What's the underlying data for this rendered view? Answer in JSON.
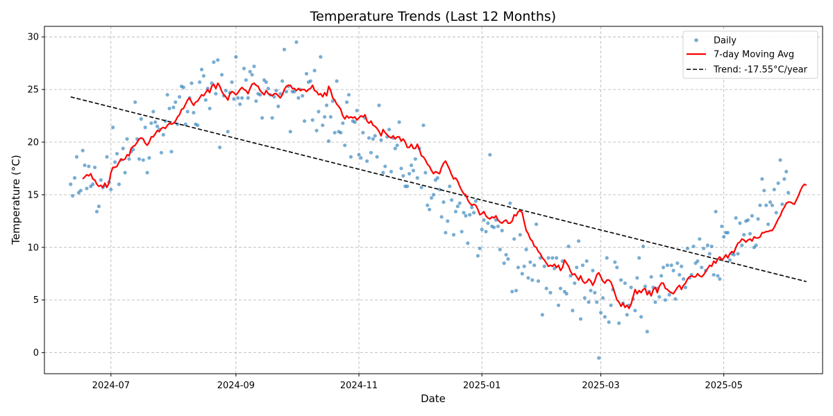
{
  "chart_data": {
    "type": "scatter",
    "title": "Temperature Trends (Last 12 Months)",
    "xlabel": "Date",
    "ylabel": "Temperature (°C)",
    "xlim": [
      "2024-05-29",
      "2025-06-19"
    ],
    "ylim": [
      -2,
      31
    ],
    "yticks": [
      0,
      5,
      10,
      15,
      20,
      25,
      30
    ],
    "xticks": [
      "2024-07-01",
      "2024-09-01",
      "2024-11-01",
      "2025-01-01",
      "2025-03-01",
      "2025-05-01"
    ],
    "xtick_labels": [
      "2024-07",
      "2024-09",
      "2024-11",
      "2025-01",
      "2025-03",
      "2025-05"
    ],
    "grid": true,
    "legend_position": "top-right",
    "colors": {
      "daily": "#1f77b4",
      "moving_avg": "#ff0000",
      "trend": "#000000"
    },
    "series": [
      {
        "name": "Daily",
        "style": "points",
        "x_start": "2024-06-11",
        "x_step_days": 1,
        "values": [
          16.0,
          14.9,
          16.6,
          18.6,
          15.2,
          15.4,
          19.2,
          17.8,
          15.6,
          17.7,
          15.8,
          16.0,
          17.6,
          13.4,
          13.9,
          16.4,
          15.7,
          15.9,
          18.6,
          16.2,
          15.5,
          21.4,
          18.1,
          18.9,
          16.0,
          18.3,
          19.4,
          17.1,
          20.3,
          18.4,
          19.1,
          19.3,
          23.8,
          20.3,
          18.4,
          22.2,
          18.3,
          21.4,
          17.1,
          18.5,
          21.8,
          22.9,
          21.9,
          21.5,
          21.2,
          19.0,
          20.7,
          22.0,
          24.5,
          23.2,
          19.1,
          23.3,
          23.8,
          21.7,
          24.3,
          25.3,
          25.2,
          21.7,
          22.9,
          24.2,
          25.6,
          22.8,
          21.7,
          21.6,
          25.7,
          26.9,
          26.3,
          24.0,
          25.1,
          23.2,
          25.6,
          27.6,
          24.6,
          27.8,
          19.5,
          26.4,
          24.4,
          24.9,
          21.0,
          24.7,
          25.7,
          24.1,
          28.1,
          24.2,
          23.6,
          24.2,
          27.0,
          25.9,
          24.2,
          26.7,
          26.4,
          27.2,
          23.9,
          24.6,
          24.5,
          22.3,
          25.9,
          25.7,
          25.1,
          24.5,
          22.3,
          24.3,
          24.9,
          23.4,
          24.6,
          25.8,
          28.8,
          24.8,
          25.3,
          21.0,
          24.8,
          24.8,
          29.5,
          24.2,
          25.0,
          24.4,
          22.0,
          26.5,
          25.7,
          25.8,
          22.1,
          26.8,
          21.1,
          22.9,
          28.1,
          21.6,
          22.4,
          23.5,
          20.1,
          22.4,
          23.9,
          20.9,
          25.8,
          21.0,
          20.9,
          21.8,
          19.7,
          23.8,
          24.5,
          18.6,
          22.0,
          21.9,
          23.0,
          18.8,
          18.5,
          20.9,
          22.3,
          18.2,
          20.4,
          19.0,
          20.3,
          20.6,
          18.6,
          23.5,
          20.2,
          17.1,
          17.7,
          20.5,
          21.2,
          17.2,
          20.4,
          19.4,
          19.7,
          21.9,
          17.5,
          16.8,
          15.8,
          15.8,
          17.0,
          17.8,
          17.3,
          18.4,
          16.6,
          19.4,
          15.7,
          21.6,
          17.1,
          14.0,
          13.6,
          14.7,
          15.0,
          16.4,
          16.6,
          15.5,
          12.9,
          14.3,
          11.4,
          12.5,
          15.8,
          14.5,
          11.2,
          13.4,
          13.9,
          14.2,
          11.5,
          13.3,
          13.0,
          10.4,
          13.1,
          13.8,
          13.3,
          14.4,
          9.2,
          9.9,
          11.7,
          12.6,
          11.5,
          12.3,
          18.8,
          12.0,
          11.9,
          12.6,
          12.0,
          9.8,
          11.6,
          8.5,
          9.3,
          8.9,
          14.2,
          5.8,
          10.8,
          5.9,
          8.1,
          11.2,
          7.5,
          8.2,
          9.8,
          7.1,
          8.6,
          6.9,
          8.3,
          12.2,
          6.8,
          9.0,
          3.6,
          8.2,
          6.1,
          9.0,
          5.7,
          9.0,
          8.0,
          9.0,
          4.5,
          6.1,
          8.7,
          5.8,
          5.6,
          10.1,
          7.3,
          4.0,
          6.6,
          8.1,
          10.6,
          3.2,
          8.3,
          5.2,
          8.7,
          4.8,
          5.9,
          7.8,
          5.7,
          4.8,
          -0.5,
          3.8,
          5.2,
          3.4,
          9.0,
          2.9,
          4.5,
          6.0,
          8.6,
          8.1,
          2.8,
          6.9,
          4.7,
          6.6,
          3.6,
          4.5,
          6.2,
          5.1,
          4.0,
          7.1,
          9.0,
          3.4,
          10.1,
          6.3,
          2.0,
          5.8,
          7.2,
          6.2,
          4.8,
          6.1,
          5.3,
          7.3,
          8.1,
          5.0,
          8.3,
          5.5,
          8.3,
          7.8,
          5.1,
          8.5,
          7.4,
          8.2,
          7.0,
          6.2,
          9.9,
          7.1,
          7.4,
          10.1,
          8.5,
          8.7,
          10.8,
          8.1,
          9.9,
          7.8,
          10.2,
          9.4,
          10.1,
          7.4,
          13.4,
          7.3,
          7.0,
          12.0,
          11.0,
          11.4,
          11.4,
          8.8,
          9.4,
          9.3,
          12.8,
          9.4,
          12.3,
          10.2,
          11.2,
          12.5,
          12.6,
          11.3,
          13.0,
          10.0,
          10.2,
          12.7,
          14.0,
          16.5,
          15.4,
          14.0,
          12.2,
          14.3,
          14.0,
          15.5,
          13.3,
          16.1,
          18.3,
          14.1,
          16.5,
          17.2,
          15.2
        ]
      },
      {
        "name": "7-day Moving Avg",
        "style": "line",
        "x_start": "2024-06-17",
        "x_step_days": 1,
        "values": [
          16.5,
          16.7,
          16.9,
          16.8,
          17.0,
          16.5,
          16.4,
          16.0,
          15.8,
          15.9,
          15.7,
          16.1,
          15.7,
          16.1,
          17.1,
          17.6,
          17.6,
          17.7,
          18.1,
          18.4,
          18.3,
          18.4,
          18.8,
          18.7,
          19.4,
          19.6,
          19.7,
          20.0,
          20.3,
          20.4,
          20.3,
          19.9,
          19.7,
          20.0,
          20.5,
          20.5,
          20.8,
          21.1,
          21.0,
          21.3,
          21.4,
          21.3,
          21.6,
          21.8,
          21.7,
          21.8,
          22.0,
          22.4,
          22.6,
          23.1,
          23.2,
          23.6,
          24.0,
          24.2,
          23.8,
          23.5,
          23.8,
          23.9,
          24.2,
          24.5,
          24.4,
          24.7,
          25.0,
          24.7,
          25.3,
          25.5,
          25.1,
          25.6,
          25.3,
          24.8,
          24.5,
          24.3,
          24.0,
          24.6,
          24.8,
          24.7,
          24.5,
          24.7,
          25.0,
          25.2,
          25.0,
          24.9,
          24.6,
          25.1,
          25.5,
          25.6,
          25.4,
          25.3,
          24.9,
          24.7,
          24.5,
          24.9,
          24.6,
          24.5,
          24.4,
          24.6,
          24.6,
          24.4,
          24.2,
          24.5,
          25.0,
          25.3,
          25.4,
          25.4,
          25.1,
          25.1,
          24.9,
          25.1,
          24.9,
          25.0,
          25.0,
          24.8,
          25.0,
          25.1,
          25.4,
          24.9,
          24.8,
          24.5,
          24.6,
          24.3,
          24.7,
          24.4,
          25.3,
          24.9,
          24.2,
          24.0,
          23.6,
          23.4,
          23.1,
          22.5,
          22.2,
          22.5,
          22.3,
          22.4,
          22.3,
          22.4,
          22.1,
          22.3,
          22.5,
          22.4,
          22.6,
          22.0,
          21.8,
          22.0,
          21.6,
          21.5,
          21.3,
          21.0,
          20.6,
          21.2,
          20.9,
          20.7,
          20.5,
          20.4,
          20.6,
          20.3,
          20.5,
          20.5,
          20.1,
          20.3,
          20.0,
          19.5,
          19.5,
          19.8,
          19.4,
          19.4,
          19.8,
          19.3,
          18.7,
          18.6,
          18.3,
          17.9,
          17.7,
          17.3,
          17.0,
          17.2,
          17.1,
          17.0,
          17.6,
          18.0,
          18.2,
          17.8,
          17.4,
          16.9,
          16.5,
          16.6,
          16.3,
          15.8,
          15.4,
          15.1,
          15.0,
          14.5,
          14.2,
          14.0,
          14.1,
          14.0,
          13.6,
          13.1,
          13.2,
          13.4,
          13.0,
          12.8,
          12.7,
          12.9,
          12.8,
          13.0,
          12.6,
          12.4,
          12.3,
          12.5,
          12.6,
          12.3,
          12.3,
          12.5,
          13.1,
          13.0,
          13.4,
          13.5,
          13.3,
          12.4,
          11.6,
          11.3,
          10.8,
          10.6,
          10.1,
          10.0,
          9.6,
          9.4,
          9.0,
          8.8,
          8.5,
          8.2,
          8.3,
          8.2,
          8.4,
          8.1,
          8.3,
          7.8,
          8.1,
          8.8,
          8.5,
          8.2,
          7.7,
          7.4,
          7.5,
          7.2,
          6.9,
          7.3,
          6.8,
          6.6,
          6.7,
          7.0,
          6.8,
          6.4,
          6.8,
          7.4,
          7.6,
          7.2,
          6.8,
          6.6,
          6.9,
          6.9,
          6.7,
          6.2,
          5.6,
          5.0,
          4.8,
          4.4,
          4.7,
          4.3,
          4.5,
          4.2,
          4.6,
          5.3,
          6.0,
          5.6,
          5.9,
          5.7,
          6.0,
          6.1,
          5.5,
          5.8,
          5.4,
          6.0,
          6.2,
          5.7,
          6.3,
          6.6,
          6.6,
          6.1,
          6.0,
          5.8,
          5.7,
          5.6,
          5.9,
          6.2,
          6.4,
          6.0,
          6.4,
          6.6,
          7.0,
          7.2,
          7.3,
          7.2,
          7.2,
          7.5,
          7.3,
          7.2,
          7.4,
          7.7,
          8.0,
          8.3,
          8.2,
          8.7,
          8.5,
          8.9,
          9.1,
          8.8,
          9.0,
          9.3,
          9.0,
          9.4,
          9.6,
          9.5,
          10.0,
          10.4,
          10.5,
          10.8,
          10.7,
          10.5,
          10.7,
          10.8,
          10.6,
          11.0,
          10.9,
          10.9,
          11.0,
          11.4,
          11.4,
          11.5,
          11.5,
          11.6,
          11.6,
          11.9,
          12.3,
          12.7,
          13.0,
          13.5,
          13.8,
          14.2,
          14.3,
          14.3,
          14.2,
          14.1,
          14.5,
          14.9,
          15.4,
          15.8,
          16.0,
          15.9
        ]
      },
      {
        "name": "Trend: -17.55°C/year",
        "style": "dashed-line",
        "x": [
          "2024-06-11",
          "2025-06-11"
        ],
        "values": [
          24.3,
          6.75
        ]
      }
    ]
  }
}
